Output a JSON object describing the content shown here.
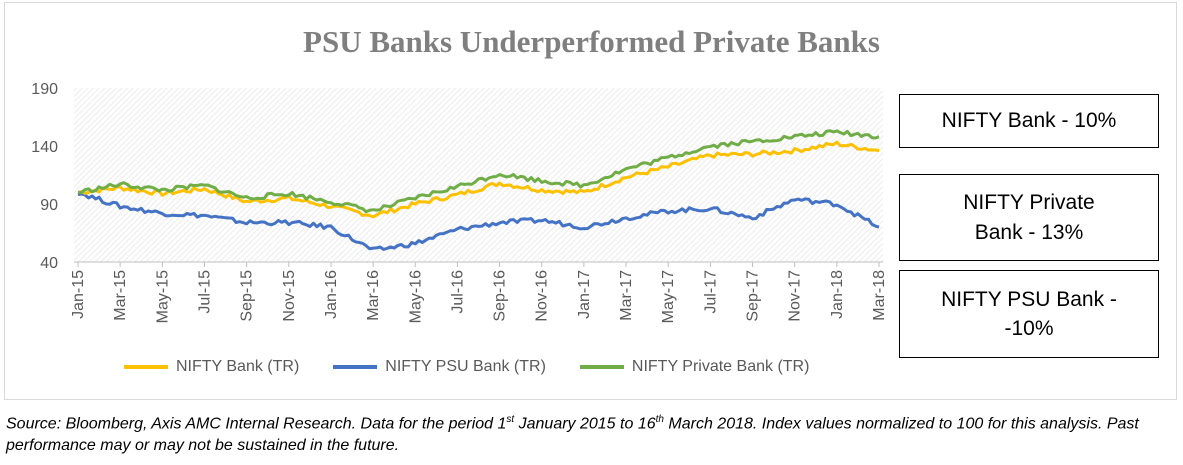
{
  "chart_data": {
    "type": "line",
    "title": "PSU Banks Underperformed Private Banks",
    "xlabel": "",
    "ylabel": "",
    "ylim": [
      40,
      190
    ],
    "yticks": [
      40,
      90,
      140,
      190
    ],
    "grid": "diagonal-hatch background",
    "legend_position": "bottom",
    "x": [
      "Jan-15",
      "Mar-15",
      "May-15",
      "Jul-15",
      "Sep-15",
      "Nov-15",
      "Jan-16",
      "Mar-16",
      "May-16",
      "Jul-16",
      "Sep-16",
      "Nov-16",
      "Jan-17",
      "Mar-17",
      "May-17",
      "Jul-17",
      "Sep-17",
      "Nov-17",
      "Jan-18",
      "Mar-18"
    ],
    "series": [
      {
        "name": "NIFTY Bank (TR)",
        "color": "#ffc000",
        "values": [
          100,
          104,
          99,
          103,
          92,
          95,
          88,
          80,
          90,
          98,
          108,
          102,
          100,
          113,
          122,
          132,
          133,
          136,
          142,
          136
        ]
      },
      {
        "name": "NIFTY PSU Bank (TR)",
        "color": "#4472c4",
        "values": [
          100,
          88,
          82,
          80,
          74,
          74,
          70,
          50,
          56,
          68,
          74,
          76,
          70,
          78,
          84,
          86,
          78,
          94,
          90,
          70
        ]
      },
      {
        "name": "NIFTY Private Bank (TR)",
        "color": "#70ad47",
        "values": [
          100,
          107,
          102,
          106,
          95,
          99,
          92,
          84,
          95,
          105,
          116,
          110,
          106,
          120,
          130,
          140,
          144,
          148,
          152,
          148
        ]
      }
    ],
    "annotations": [
      "NIFTY Bank - 10%",
      "NIFTY Private Bank - 13%",
      "NIFTY PSU Bank - -10%"
    ]
  },
  "annotation_boxes": {
    "bank": "NIFTY Bank - 10%",
    "private_line1": "NIFTY Private",
    "private_line2": "Bank - 13%",
    "psu_line1": "NIFTY PSU Bank -",
    "psu_line2": "-10%"
  },
  "source": {
    "part1": "Source: Bloomberg, Axis AMC Internal Research. Data for the period 1",
    "sup1": "st",
    "part2": " January 2015 to 16",
    "sup2": "th",
    "part3": " March 2018. Index values normalized to 100 for this analysis. Past performance may or may not be sustained in the future."
  }
}
